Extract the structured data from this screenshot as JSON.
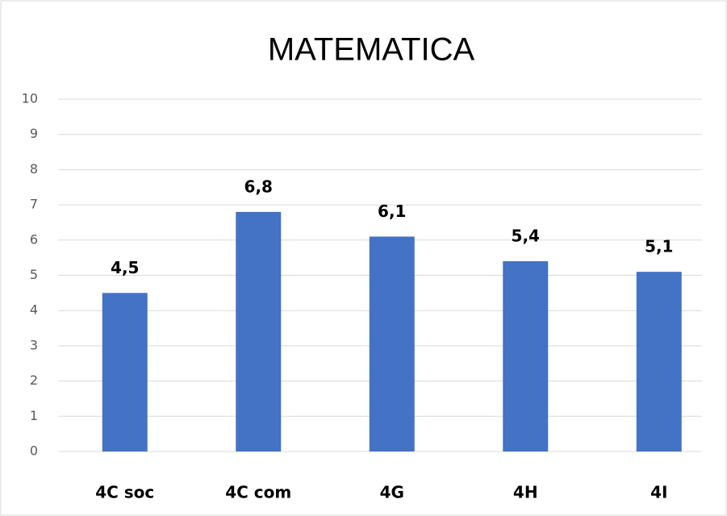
{
  "chart_data": {
    "type": "bar",
    "title": "MATEMATICA",
    "categories": [
      "4C soc",
      "4C com",
      "4G",
      "4H",
      "4I"
    ],
    "values": [
      4.5,
      6.8,
      6.1,
      5.4,
      5.1
    ],
    "value_labels": [
      "4,5",
      "6,8",
      "6,1",
      "5,4",
      "5,1"
    ],
    "color": "#4472c4",
    "ylim": [
      0,
      10
    ],
    "yticks": [
      0,
      1,
      2,
      3,
      4,
      5,
      6,
      7,
      8,
      9,
      10
    ],
    "grid": true
  }
}
